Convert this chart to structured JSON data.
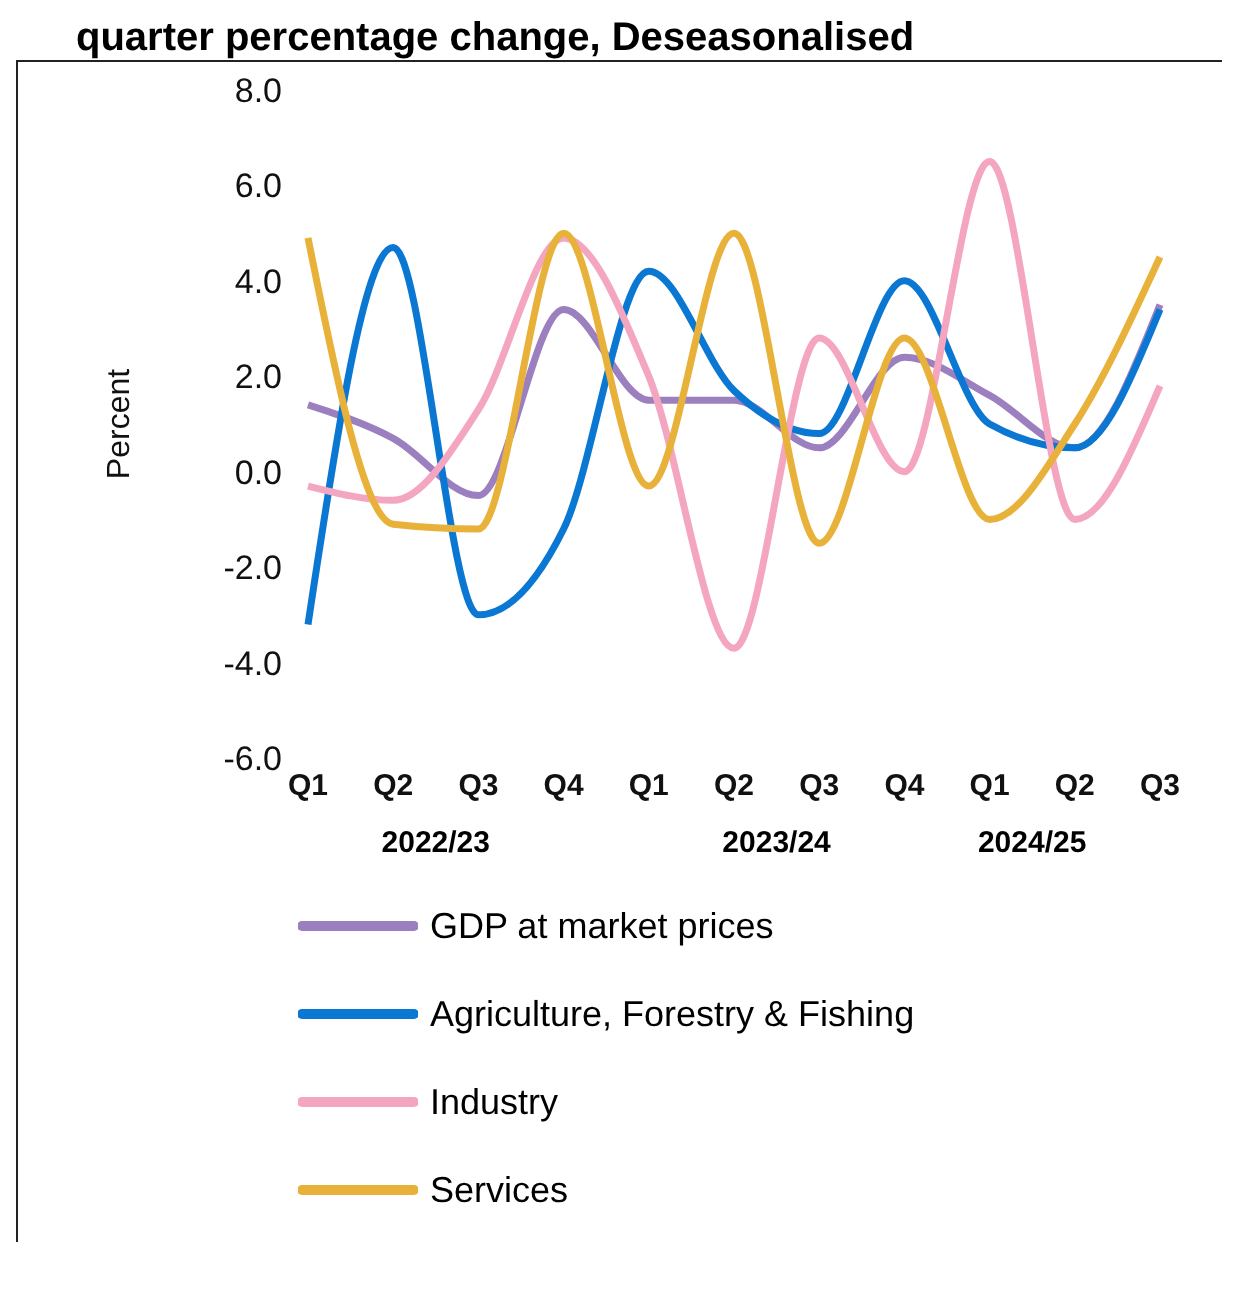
{
  "chart_data": {
    "type": "line",
    "title": "quarter percentage change, Deseasonalised",
    "ylabel": "Percent",
    "categories": [
      "Q1",
      "Q2",
      "Q3",
      "Q4",
      "Q1",
      "Q2",
      "Q3",
      "Q4",
      "Q1",
      "Q2",
      "Q3"
    ],
    "annotations": [
      "2022/23",
      "2023/24",
      "2024/25"
    ],
    "series": [
      {
        "name": "GDP at market prices",
        "color": "#9b7fbf",
        "values": [
          1.4,
          0.7,
          -0.5,
          3.4,
          1.5,
          1.5,
          0.5,
          2.4,
          1.6,
          0.5,
          3.5
        ]
      },
      {
        "name": "Agriculture, Forestry & Fishing",
        "color": "#0a78d2",
        "values": [
          -3.2,
          4.7,
          -3.0,
          -1.2,
          4.2,
          1.7,
          0.8,
          4.0,
          1.0,
          0.5,
          3.4
        ]
      },
      {
        "name": "Industry",
        "color": "#f4a6c0",
        "values": [
          -0.3,
          -0.6,
          1.3,
          4.9,
          2.0,
          -3.7,
          2.8,
          0.0,
          6.5,
          -1.0,
          1.8
        ]
      },
      {
        "name": "Services",
        "color": "#e8b23a",
        "values": [
          4.9,
          -1.1,
          -1.2,
          5.0,
          -0.3,
          5.0,
          -1.5,
          2.8,
          -1.0,
          1.0,
          4.5
        ]
      }
    ],
    "ylim": [
      -6,
      8
    ],
    "yticks": [
      {
        "value": -6,
        "label": "-6.0"
      },
      {
        "value": -4,
        "label": "-4.0"
      },
      {
        "value": -2,
        "label": "-2.0"
      },
      {
        "value": 0,
        "label": "0.0"
      },
      {
        "value": 2,
        "label": "2.0"
      },
      {
        "value": 4,
        "label": "4.0"
      },
      {
        "value": 6,
        "label": "6.0"
      },
      {
        "value": 8,
        "label": "8.0"
      }
    ],
    "grid": false,
    "legend": "bottom",
    "marker": "none",
    "line_style": "solid"
  }
}
